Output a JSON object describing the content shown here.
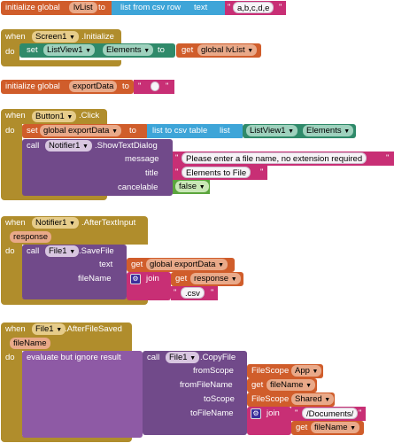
{
  "block1": {
    "init": "initialize global",
    "name": "lvList",
    "to": "to",
    "fn": "list from csv row",
    "text_kw": "text",
    "value": "a,b,c,d,e",
    "q": "\""
  },
  "block2": {
    "when": "when",
    "component": "Screen1",
    "event": ".Initialize",
    "do": "do",
    "set": "set",
    "target": "ListView1",
    "prop": "Elements",
    "to": "to",
    "get": "get",
    "var": "global lvList"
  },
  "block3": {
    "init": "initialize global",
    "name": "exportData",
    "to": "to",
    "value": ""
  },
  "block4": {
    "when": "when",
    "component": "Button1",
    "event": ".Click",
    "do": "do",
    "set": "set",
    "var": "global exportData",
    "to": "to",
    "fn": "list to csv table",
    "list_kw": "list",
    "src": "ListView1",
    "prop": "Elements",
    "call": "call",
    "notifier": "Notifier1",
    "method": ".ShowTextDialog",
    "message_kw": "message",
    "message": "Please enter a file name, no extension required",
    "title_kw": "title",
    "title": "Elements to File",
    "cancelable_kw": "cancelable",
    "cancelable": "false"
  },
  "block5": {
    "when": "when",
    "component": "Notifier1",
    "event": ".AfterTextInput",
    "param": "response",
    "do": "do",
    "call": "call",
    "file": "File1",
    "method": ".SaveFile",
    "text_kw": "text",
    "get": "get",
    "var": "global exportData",
    "filename_kw": "fileName",
    "join": "join",
    "get2": "get",
    "var2": "response",
    "ext": ".csv"
  },
  "block6": {
    "when": "when",
    "component": "File1",
    "event": ".AfterFileSaved",
    "param": "fileName",
    "do": "do",
    "eval": "evaluate but ignore result",
    "call": "call",
    "file": "File1",
    "method": ".CopyFile",
    "fromScope_kw": "fromScope",
    "fromScope_k": "FileScope",
    "fromScope_v": "App",
    "fromFileName_kw": "fromFileName",
    "get": "get",
    "fromFileName_v": "fileName",
    "toScope_kw": "toScope",
    "toScope_k": "FileScope",
    "toScope_v": "Shared",
    "toFileName_kw": "toFileName",
    "join": "join",
    "path": "/Documents/",
    "get2": "get",
    "var2": "fileName"
  }
}
